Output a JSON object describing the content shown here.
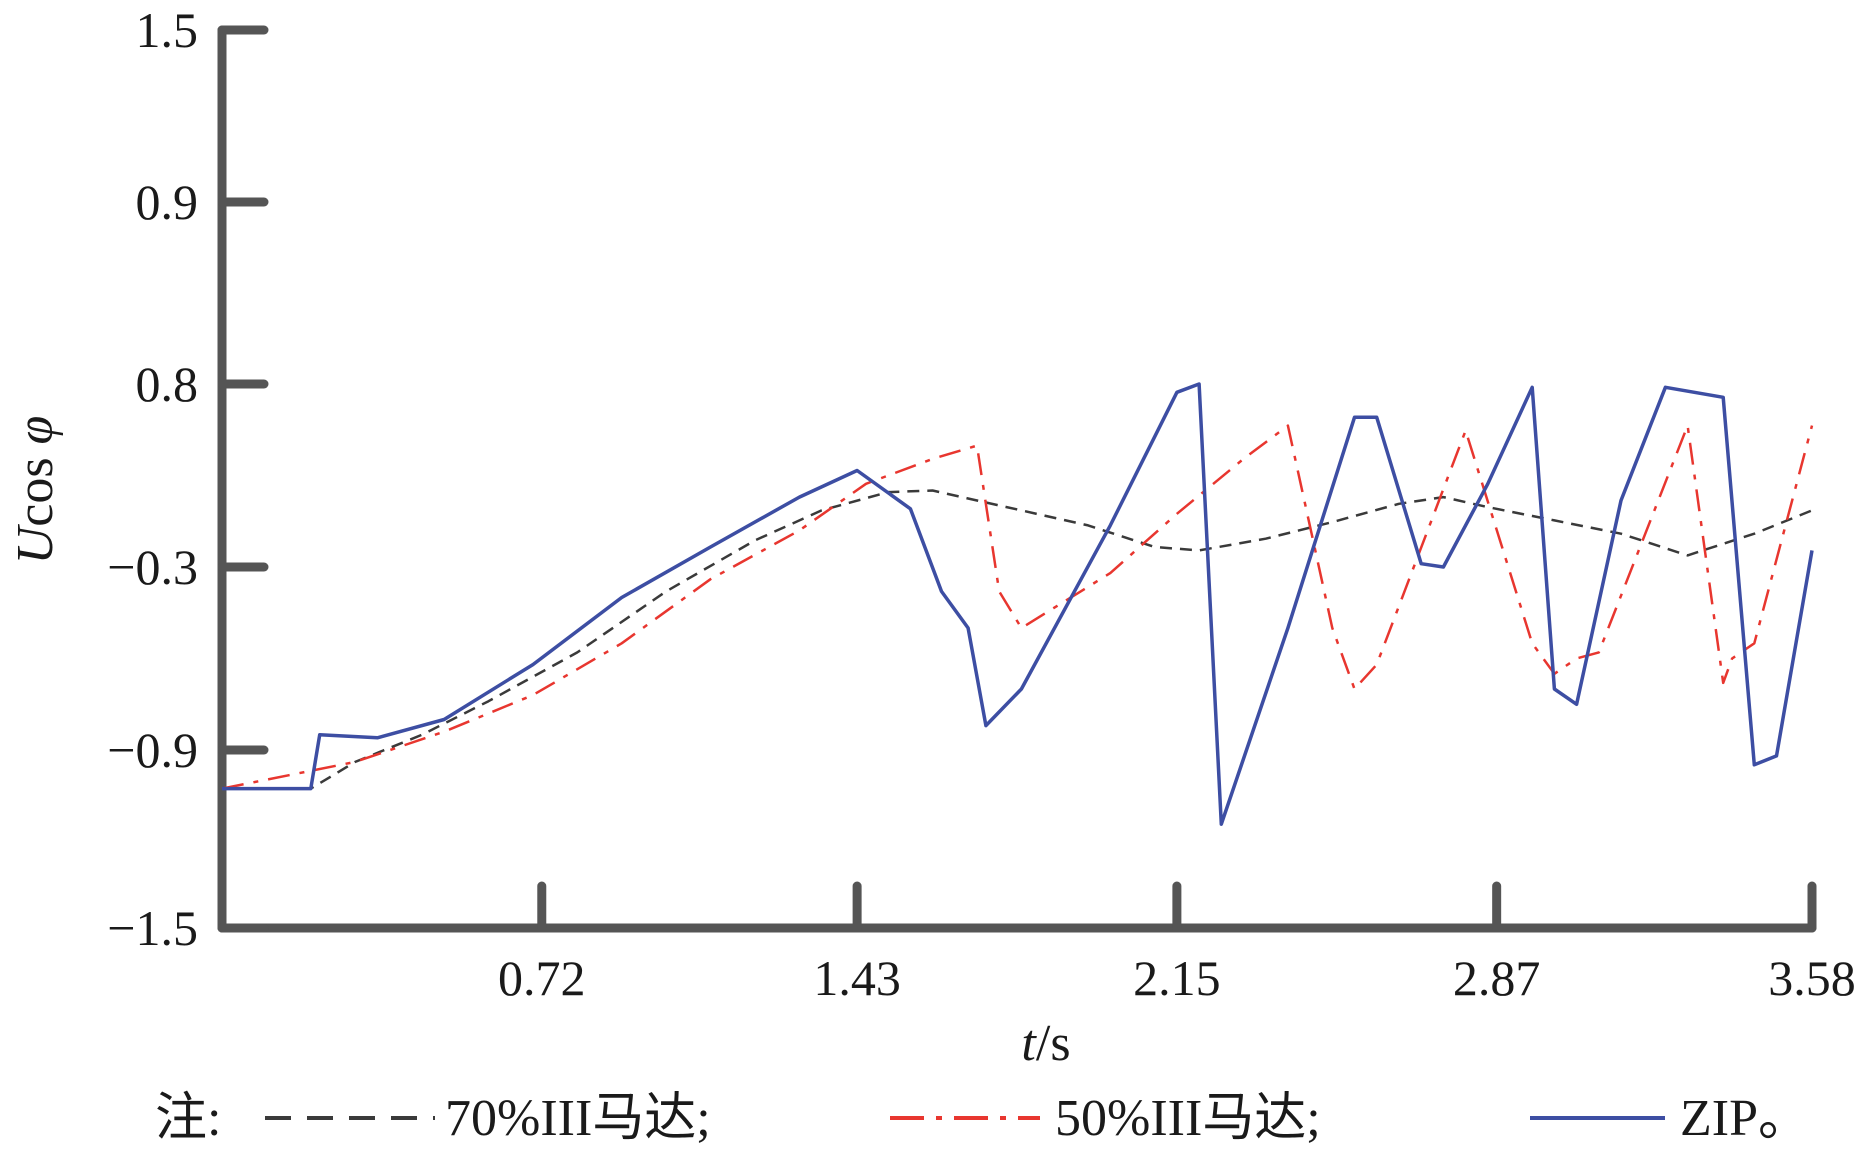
{
  "chart_data": {
    "type": "line",
    "title": "",
    "xlabel": {
      "italic": "t",
      "rest": "/s"
    },
    "ylabel": {
      "italic_u": "U",
      "mid": "cos ",
      "italic_phi": "φ"
    },
    "xticks": [
      "0.72",
      "1.43",
      "2.15",
      "2.87",
      "3.58"
    ],
    "yticks": [
      "1.5",
      "0.9",
      "0.8",
      "−0.3",
      "−0.9",
      "−1.5"
    ],
    "x_tick_values": [
      0.72,
      1.43,
      2.15,
      2.87,
      3.58
    ],
    "xlim": [
      0,
      3.58
    ],
    "legend": {
      "prefix": "注:",
      "placement": "bottom",
      "entries": [
        "70%III马达;",
        "50%III马达;",
        "ZIP。"
      ]
    },
    "series": [
      {
        "name": "70%III马达",
        "color": "#3a3a3a",
        "style": "dashed",
        "x": [
          0.0,
          0.2,
          0.3,
          0.45,
          0.6,
          0.8,
          1.0,
          1.2,
          1.35,
          1.5,
          1.6,
          1.7,
          1.8,
          1.95,
          2.1,
          2.2,
          2.35,
          2.5,
          2.65,
          2.75,
          2.85,
          3.0,
          3.15,
          3.3,
          3.45,
          3.58
        ],
        "y": [
          -1.03,
          -1.03,
          -0.94,
          -0.85,
          -0.74,
          -0.58,
          -0.38,
          -0.14,
          0.04,
          0.15,
          0.16,
          0.1,
          0.04,
          -0.05,
          -0.18,
          -0.2,
          -0.13,
          -0.03,
          0.08,
          0.12,
          0.06,
          -0.02,
          -0.1,
          -0.23,
          -0.1,
          0.04
        ]
      },
      {
        "name": "50%III马达",
        "color": "#e8362f",
        "style": "dashdot",
        "x": [
          0.0,
          0.3,
          0.5,
          0.7,
          0.9,
          1.1,
          1.3,
          1.45,
          1.6,
          1.7,
          1.75,
          1.8,
          2.0,
          2.15,
          2.3,
          2.4,
          2.5,
          2.55,
          2.6,
          2.8,
          2.95,
          3.0,
          3.05,
          3.1,
          3.3,
          3.38,
          3.4,
          3.45,
          3.58
        ],
        "y": [
          -1.03,
          -0.94,
          -0.84,
          -0.72,
          -0.55,
          -0.34,
          -0.08,
          0.2,
          0.35,
          0.43,
          -0.38,
          -0.5,
          -0.32,
          0.02,
          0.35,
          0.55,
          -0.5,
          -0.7,
          -0.62,
          0.52,
          -0.55,
          -0.65,
          -0.6,
          -0.58,
          0.55,
          -0.68,
          -0.6,
          -0.55,
          0.55
        ]
      },
      {
        "name": "ZIP",
        "color": "#3d4ea3",
        "style": "solid",
        "x": [
          0.0,
          0.2,
          0.22,
          0.35,
          0.5,
          0.7,
          0.9,
          1.1,
          1.3,
          1.43,
          1.55,
          1.62,
          1.68,
          1.72,
          1.8,
          2.0,
          2.15,
          2.2,
          2.25,
          2.4,
          2.55,
          2.6,
          2.7,
          2.75,
          2.85,
          2.95,
          3.0,
          3.05,
          3.15,
          3.25,
          3.38,
          3.45,
          3.5,
          3.58
        ],
        "y": [
          -1.03,
          -1.03,
          -0.85,
          -0.86,
          -0.8,
          -0.62,
          -0.4,
          -0.18,
          0.12,
          0.28,
          0.05,
          -0.38,
          -0.5,
          -0.82,
          -0.7,
          -0.05,
          0.75,
          0.8,
          -1.15,
          -0.5,
          0.6,
          0.6,
          -0.28,
          -0.3,
          0.2,
          0.78,
          -0.7,
          -0.75,
          0.1,
          0.78,
          0.72,
          -0.95,
          -0.92,
          -0.2
        ]
      }
    ],
    "grid": false
  }
}
